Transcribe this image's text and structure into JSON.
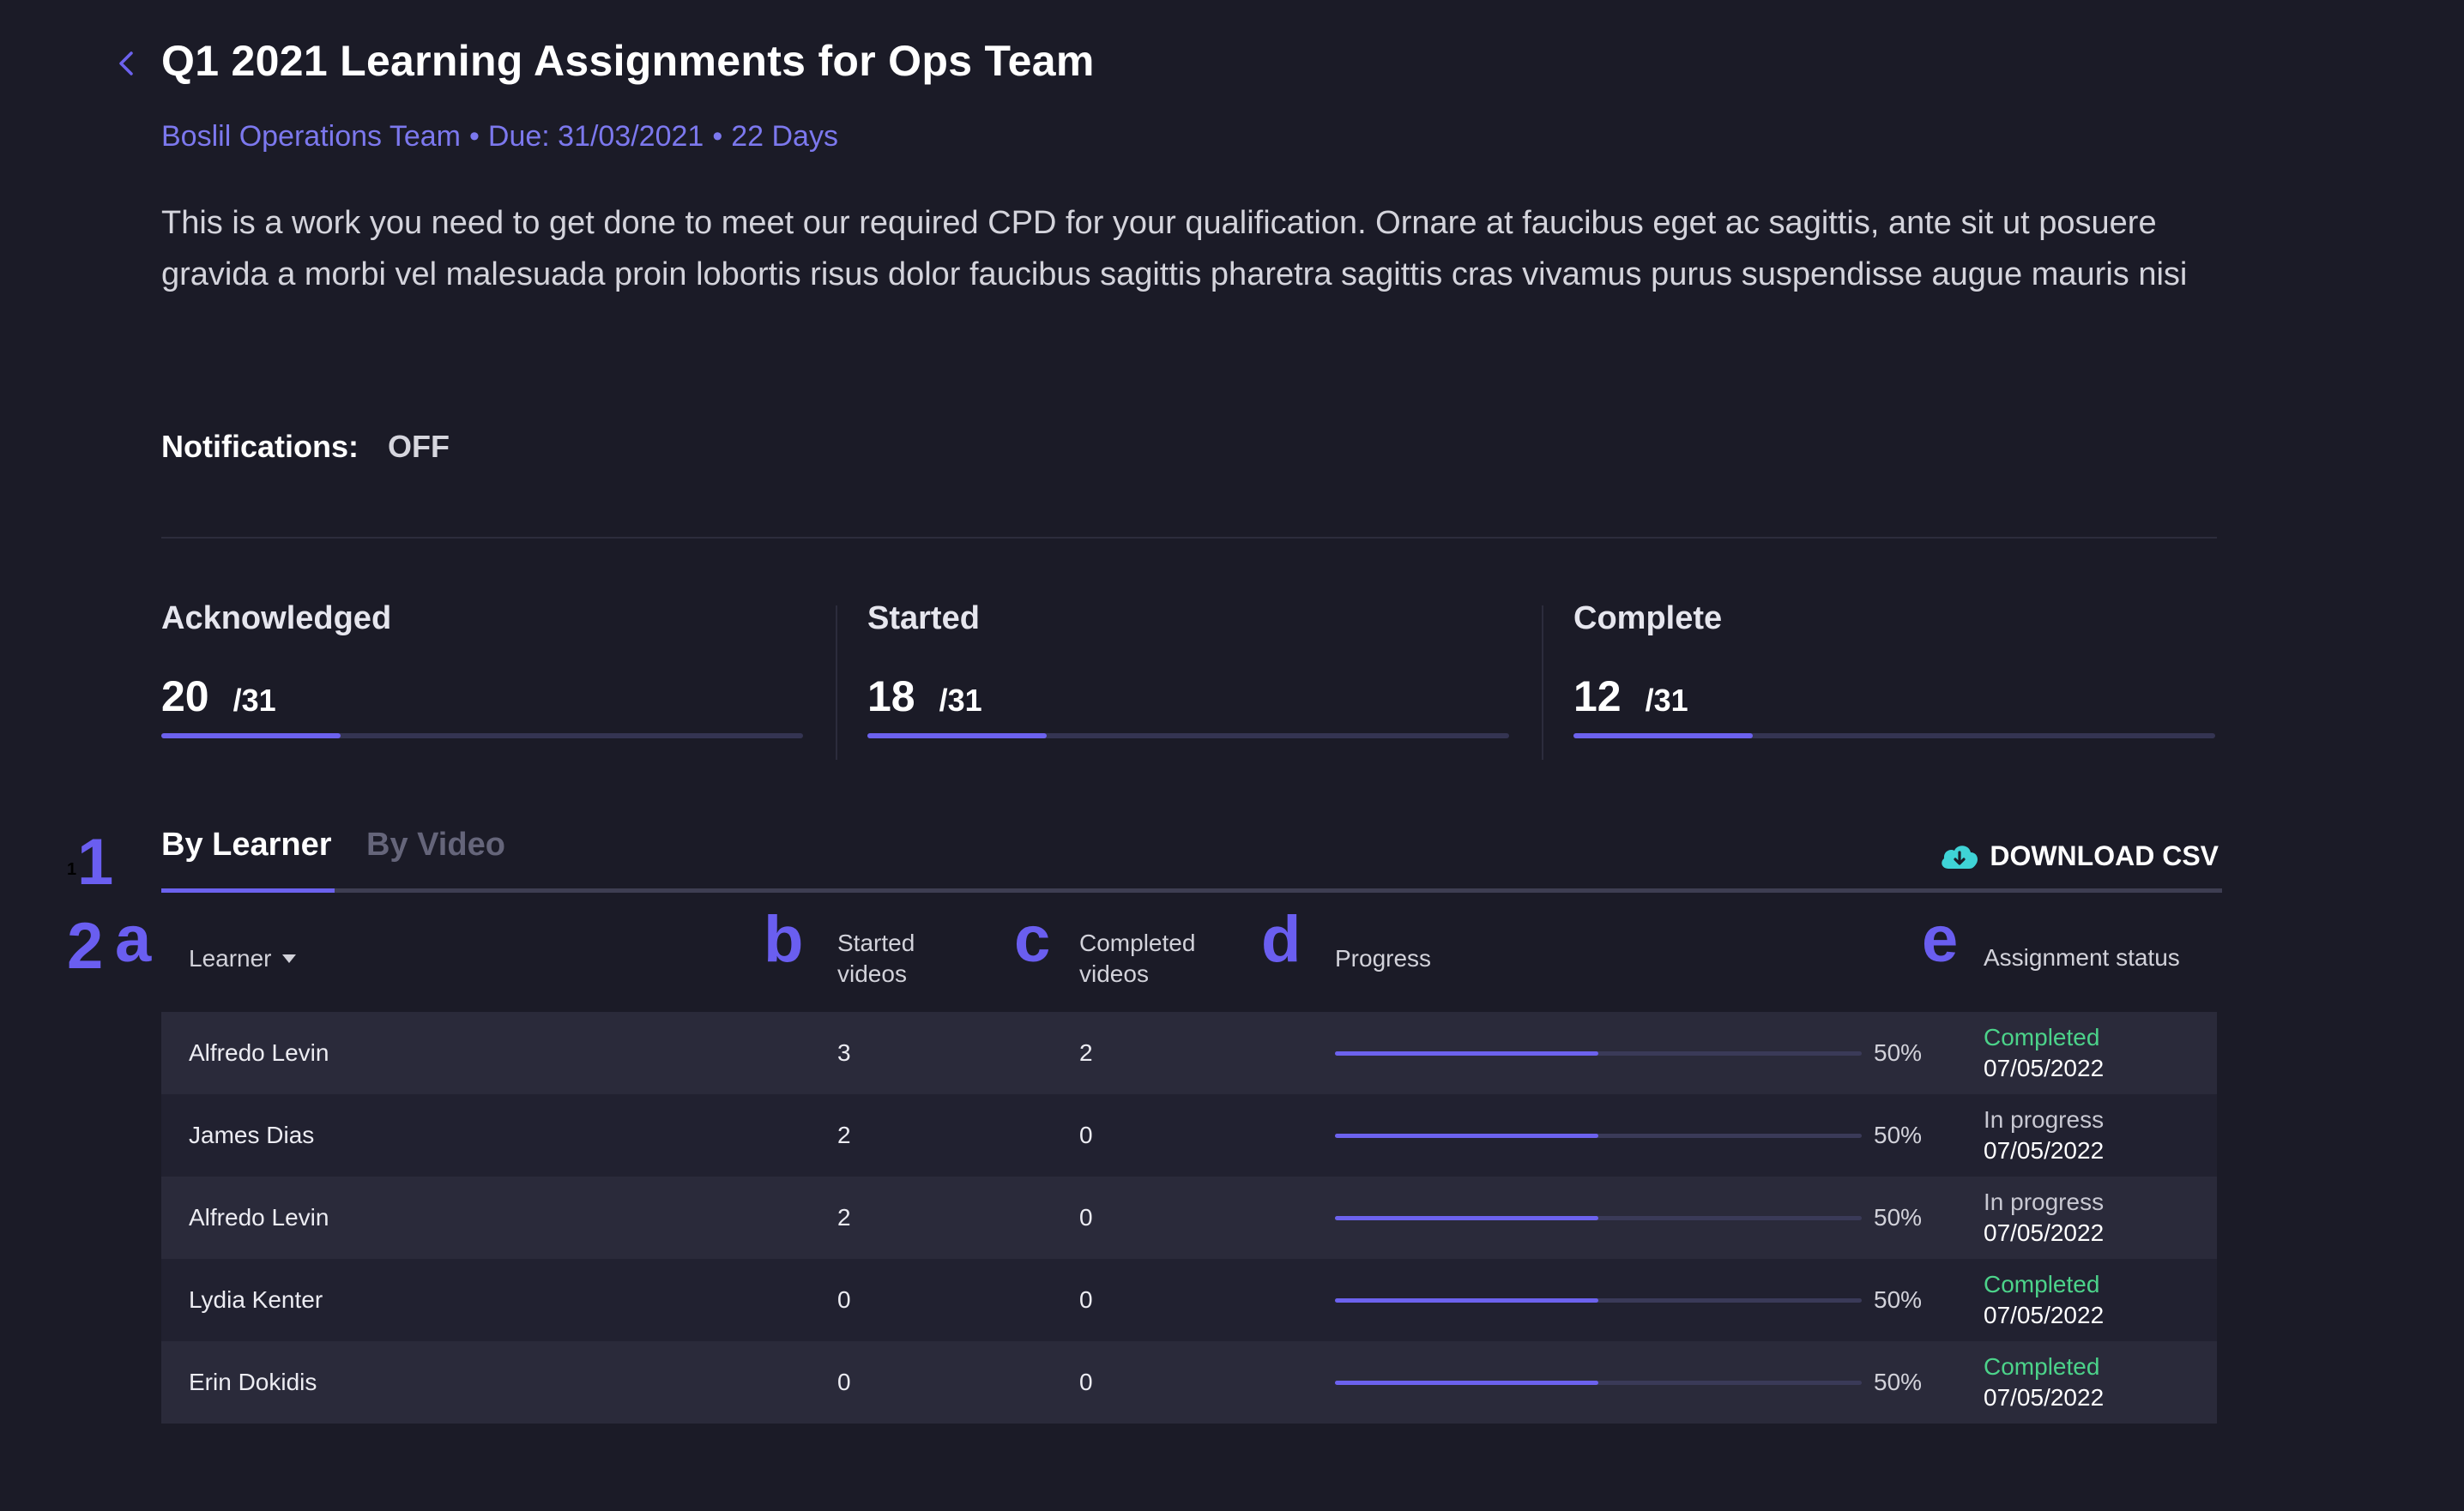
{
  "header": {
    "title": "Q1 2021 Learning Assignments for Ops Team",
    "team": "Boslil Operations Team",
    "due": "Due: 31/03/2021",
    "days": "22 Days",
    "separator": "•",
    "description": "This is a work you need to get done to meet our required CPD for your qualification. Ornare at faucibus eget ac sagittis, ante sit ut posuere gravida a morbi vel malesuada proin lobortis risus dolor faucibus sagittis pharetra sagittis cras vivamus purus suspendisse augue mauris nisi"
  },
  "notifications": {
    "label": "Notifications:",
    "value": "OFF"
  },
  "stats": [
    {
      "label": "Acknowledged",
      "current": "20",
      "total": "/31",
      "progress": 0.28
    },
    {
      "label": "Started",
      "current": "18",
      "total": "/31",
      "progress": 0.28
    },
    {
      "label": "Complete",
      "current": "12",
      "total": "/31",
      "progress": 0.28
    }
  ],
  "tabs": {
    "by_learner": "By Learner",
    "by_video": "By Video"
  },
  "download": {
    "label": "DOWNLOAD CSV",
    "icon": "cloud-download-icon"
  },
  "annotations": {
    "one": "1",
    "two": "2",
    "a": "a",
    "b": "b",
    "c": "c",
    "d": "d",
    "e": "e",
    "tiny": "1"
  },
  "table": {
    "headers": {
      "learner": "Learner",
      "started_1": "Started",
      "started_2": "videos",
      "completed_1": "Completed",
      "completed_2": "videos",
      "progress": "Progress",
      "status": "Assignment status"
    },
    "rows": [
      {
        "name": "Alfredo Levin",
        "started": "3",
        "completed": "2",
        "progress": 0.5,
        "pct": "50%",
        "status": "Completed",
        "date": "07/05/2022"
      },
      {
        "name": "James Dias",
        "started": "2",
        "completed": "0",
        "progress": 0.5,
        "pct": "50%",
        "status": "In progress",
        "date": "07/05/2022"
      },
      {
        "name": "Alfredo Levin",
        "started": "2",
        "completed": "0",
        "progress": 0.5,
        "pct": "50%",
        "status": "In progress",
        "date": "07/05/2022"
      },
      {
        "name": "Lydia Kenter",
        "started": "0",
        "completed": "0",
        "progress": 0.5,
        "pct": "50%",
        "status": "Completed",
        "date": "07/05/2022"
      },
      {
        "name": "Erin Dokidis",
        "started": "0",
        "completed": "0",
        "progress": 0.5,
        "pct": "50%",
        "status": "Completed",
        "date": "07/05/2022"
      }
    ]
  },
  "colors": {
    "accent": "#6c62ee",
    "completed": "#4cd38a",
    "background": "#1b1b27",
    "download_icon": "#3fd3d6"
  }
}
